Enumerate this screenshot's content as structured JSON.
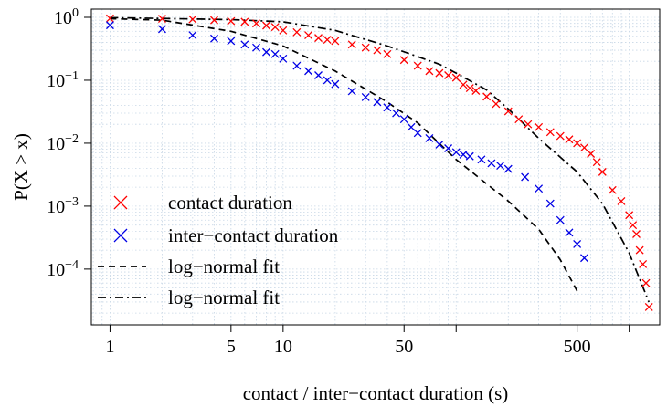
{
  "chart_data": {
    "type": "scatter",
    "title": "",
    "xlabel": "contact / inter−contact duration (s)",
    "ylabel": "P(X > x)",
    "xscale": "log",
    "yscale": "log",
    "xlim": [
      0.78,
      1500
    ],
    "ylim": [
      1.3e-05,
      1.35
    ],
    "grid": true,
    "legend_position": "bottom-left",
    "x_ticks": [
      {
        "value": 1,
        "label": "1"
      },
      {
        "value": 5,
        "label": "5"
      },
      {
        "value": 10,
        "label": "10"
      },
      {
        "value": 50,
        "label": "50"
      },
      {
        "value": 500,
        "label": "500"
      }
    ],
    "x_minor_ticks": [
      100,
      1000
    ],
    "y_ticks": [
      {
        "value": 1,
        "base": "10",
        "exp": "0"
      },
      {
        "value": 0.1,
        "base": "10",
        "exp": "−1"
      },
      {
        "value": 0.01,
        "base": "10",
        "exp": "−2"
      },
      {
        "value": 0.001,
        "base": "10",
        "exp": "−3"
      },
      {
        "value": 0.0001,
        "base": "10",
        "exp": "−4"
      }
    ],
    "series": [
      {
        "name": "contact duration",
        "kind": "points",
        "marker": "x",
        "color": "#ff0000",
        "x": [
          1,
          2,
          3,
          4,
          5,
          6,
          7,
          8,
          9,
          10,
          12,
          14,
          16,
          18,
          20,
          25,
          30,
          35,
          40,
          50,
          60,
          70,
          80,
          90,
          100,
          110,
          120,
          130,
          150,
          170,
          200,
          230,
          260,
          300,
          350,
          400,
          450,
          500,
          550,
          600,
          650,
          700,
          800,
          900,
          1000,
          1050,
          1100,
          1150,
          1200,
          1250,
          1300
        ],
        "y": [
          0.96,
          0.95,
          0.93,
          0.9,
          0.87,
          0.85,
          0.8,
          0.74,
          0.7,
          0.62,
          0.58,
          0.52,
          0.47,
          0.44,
          0.42,
          0.37,
          0.33,
          0.3,
          0.26,
          0.21,
          0.17,
          0.14,
          0.13,
          0.12,
          0.11,
          0.085,
          0.075,
          0.068,
          0.055,
          0.042,
          0.032,
          0.024,
          0.02,
          0.018,
          0.015,
          0.013,
          0.0115,
          0.01,
          0.0085,
          0.0068,
          0.005,
          0.0035,
          0.0018,
          0.0012,
          0.00072,
          0.0005,
          0.00036,
          0.0002,
          0.00012,
          6e-05,
          2.5e-05
        ]
      },
      {
        "name": "inter−contact duration",
        "kind": "points",
        "marker": "x",
        "color": "#0000e6",
        "x": [
          1,
          2,
          3,
          4,
          5,
          6,
          7,
          8,
          9,
          10,
          12,
          14,
          16,
          18,
          20,
          25,
          30,
          35,
          40,
          45,
          50,
          55,
          60,
          70,
          80,
          90,
          100,
          110,
          120,
          140,
          160,
          180,
          200,
          250,
          300,
          350,
          400,
          450,
          500,
          550
        ],
        "y": [
          0.75,
          0.65,
          0.52,
          0.46,
          0.42,
          0.37,
          0.33,
          0.28,
          0.26,
          0.22,
          0.17,
          0.14,
          0.12,
          0.1,
          0.087,
          0.067,
          0.054,
          0.045,
          0.037,
          0.03,
          0.024,
          0.018,
          0.0145,
          0.012,
          0.0095,
          0.0083,
          0.0072,
          0.0066,
          0.0062,
          0.0055,
          0.0048,
          0.0044,
          0.0039,
          0.0029,
          0.0019,
          0.0011,
          0.0006,
          0.00038,
          0.00025,
          0.00015
        ]
      },
      {
        "name": "log−normal fit",
        "kind": "line",
        "dash": "dashed",
        "color": "#000000",
        "x": [
          1,
          2,
          5,
          10,
          20,
          40,
          60,
          100,
          200,
          300,
          400,
          500,
          600
        ],
        "y": [
          0.95,
          0.9,
          0.6,
          0.35,
          0.14,
          0.045,
          0.021,
          0.0055,
          0.0012,
          0.00043,
          0.00014,
          4.5e-05,
          1.2e-05
        ]
      },
      {
        "name": "log−normal fit",
        "kind": "line",
        "dash": "dash-dot",
        "color": "#000000",
        "x": [
          1,
          5,
          10,
          20,
          40,
          80,
          100,
          150,
          200,
          300,
          500,
          700,
          1000,
          1300
        ],
        "y": [
          0.99,
          0.92,
          0.85,
          0.62,
          0.35,
          0.18,
          0.13,
          0.07,
          0.035,
          0.012,
          0.0035,
          0.0011,
          0.00018,
          3e-05
        ]
      }
    ]
  }
}
